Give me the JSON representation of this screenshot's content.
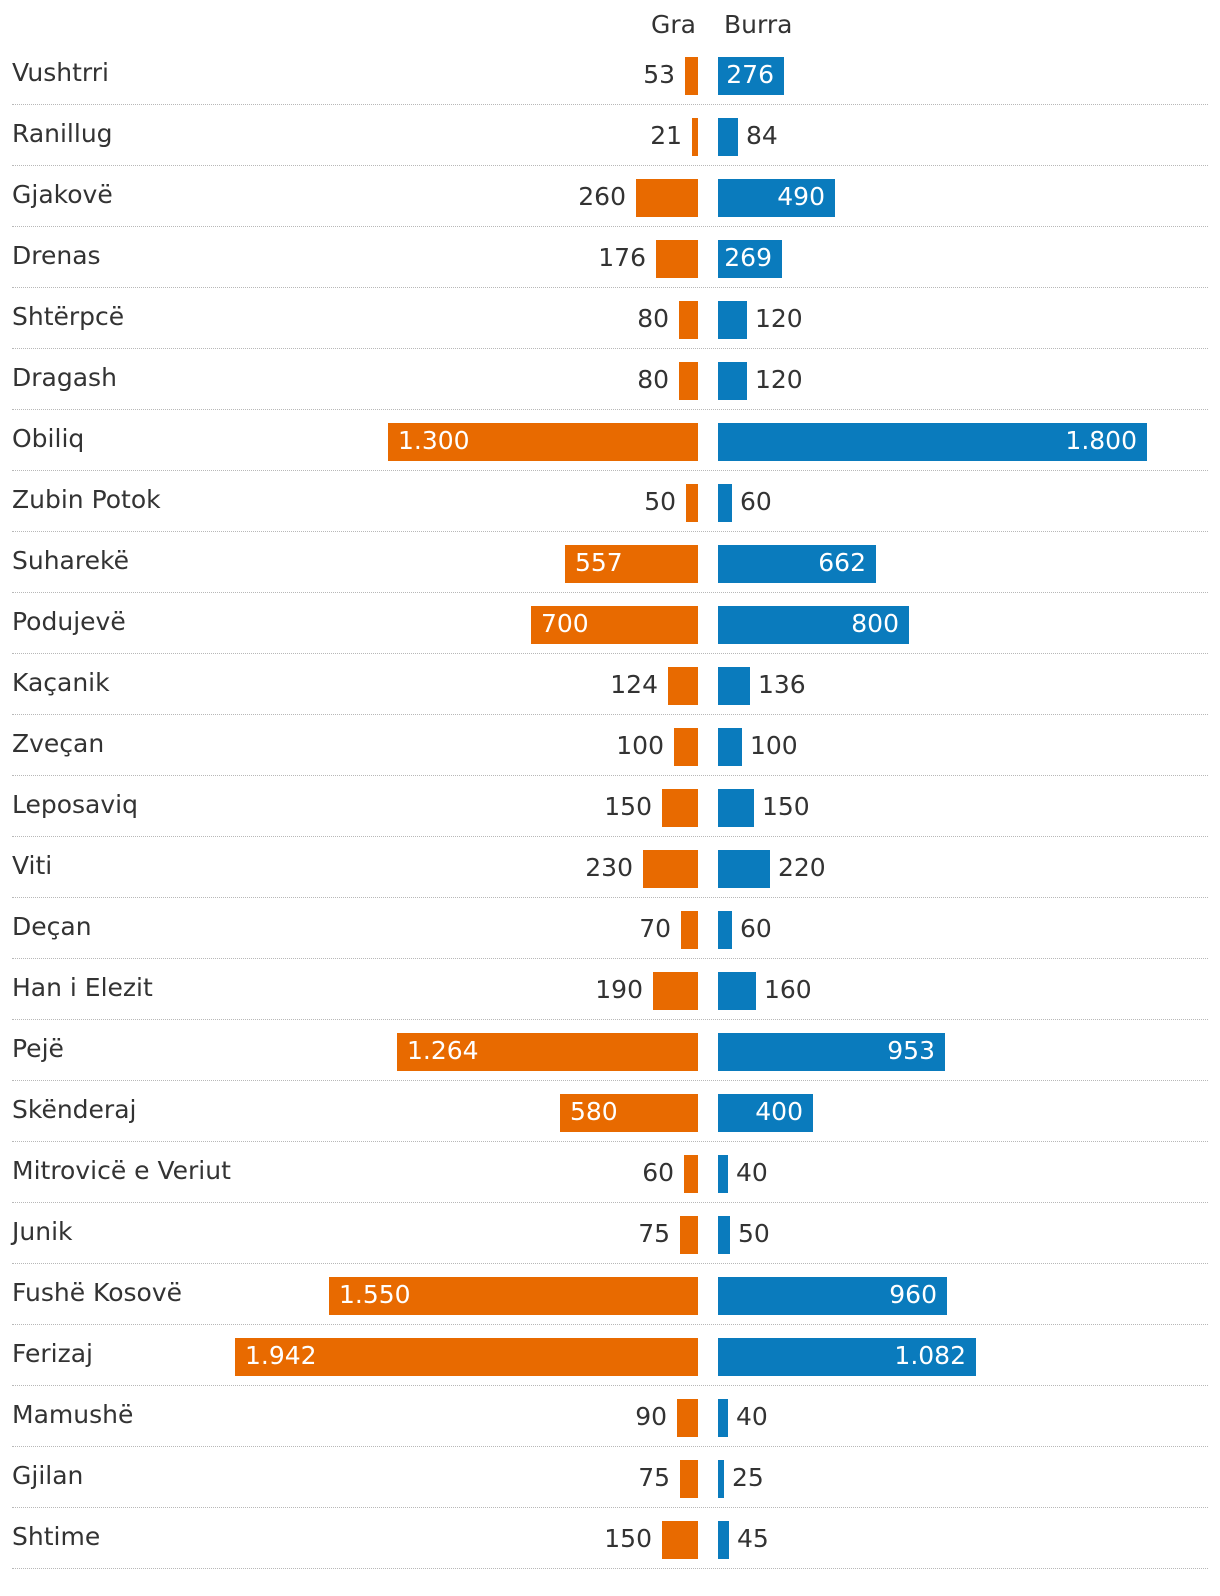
{
  "chart_data": {
    "type": "bar",
    "orientation": "horizontal-diverging",
    "title": "",
    "series": [
      {
        "name": "Gra",
        "color": "#e86a00",
        "values": [
          53,
          21,
          260,
          176,
          80,
          80,
          1300,
          50,
          557,
          700,
          124,
          100,
          150,
          230,
          70,
          190,
          1264,
          580,
          60,
          75,
          1550,
          1942,
          90,
          75,
          150
        ],
        "labels": [
          "53",
          "21",
          "260",
          "176",
          "80",
          "80",
          "1.300",
          "50",
          "557",
          "700",
          "124",
          "100",
          "150",
          "230",
          "70",
          "190",
          "1.264",
          "580",
          "60",
          "75",
          "1.550",
          "1.942",
          "90",
          "75",
          "150"
        ]
      },
      {
        "name": "Burra",
        "color": "#0a7bbd",
        "values": [
          276,
          84,
          490,
          269,
          120,
          120,
          1800,
          60,
          662,
          800,
          136,
          100,
          150,
          220,
          60,
          160,
          953,
          400,
          40,
          50,
          960,
          1082,
          40,
          25,
          45
        ],
        "labels": [
          "276",
          "84",
          "490",
          "269",
          "120",
          "120",
          "1.800",
          "60",
          "662",
          "800",
          "136",
          "100",
          "150",
          "220",
          "60",
          "160",
          "953",
          "400",
          "40",
          "50",
          "960",
          "1.082",
          "40",
          "25",
          "45"
        ]
      }
    ],
    "categories": [
      "Vushtrri",
      "Ranillug",
      "Gjakovë",
      "Drenas",
      "Shtërpcë",
      "Dragash",
      "Obiliq",
      "Zubin Potok",
      "Suharekë",
      "Podujevë",
      "Kaçanik",
      "Zveçan",
      "Leposaviq",
      "Viti",
      "Deçan",
      "Han i Elezit",
      "Pejë",
      "Skënderaj",
      "Mitrovicë e Veriut",
      "Junik",
      "Fushë Kosovë",
      "Ferizaj",
      "Mamushë",
      "Gjilan",
      "Shtime"
    ],
    "grid": false,
    "legend": "top-center"
  }
}
